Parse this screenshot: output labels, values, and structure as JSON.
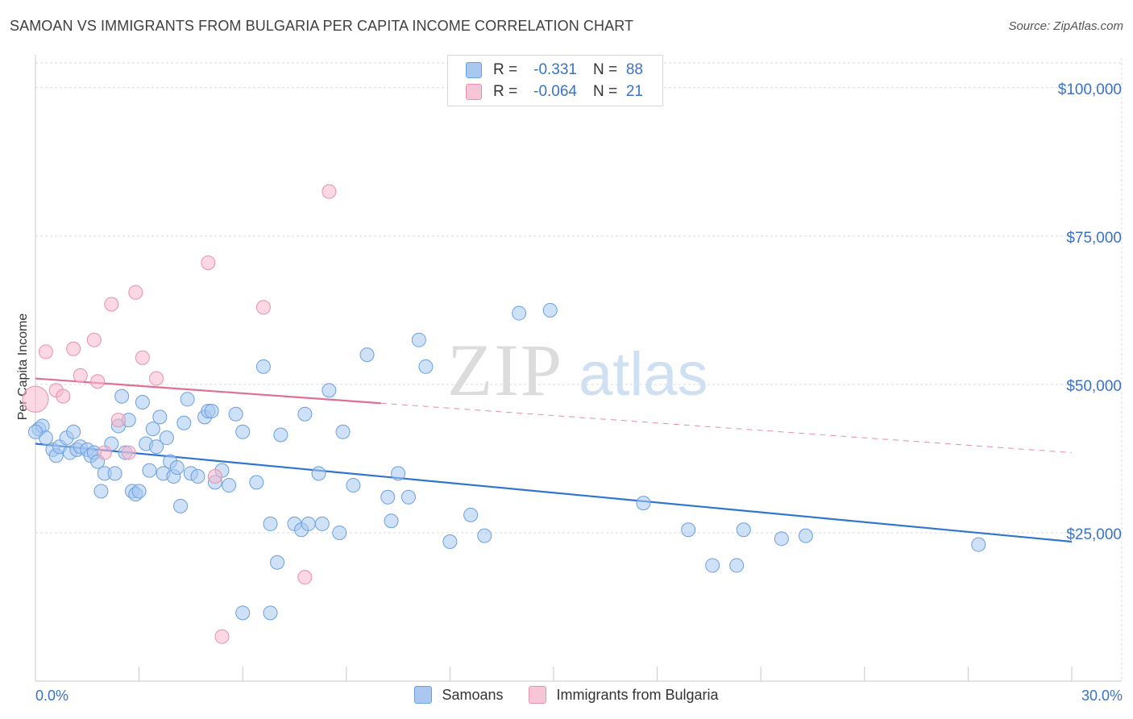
{
  "title": "SAMOAN VS IMMIGRANTS FROM BULGARIA PER CAPITA INCOME CORRELATION CHART",
  "source": "Source: ZipAtlas.com",
  "watermark": {
    "zip": "ZIP",
    "atlas": "atlas"
  },
  "legend_top": [
    {
      "r_label": "R =",
      "r_value": "-0.331",
      "n_label": "N =",
      "n_value": "88"
    },
    {
      "r_label": "R =",
      "r_value": "-0.064",
      "n_label": "N =",
      "n_value": "21"
    }
  ],
  "legend_bottom": [
    {
      "label": "Samoans"
    },
    {
      "label": "Immigrants from Bulgaria"
    }
  ],
  "colors": {
    "samoan_fill": "#a8c8f0",
    "samoan_stroke": "#6a9fe0",
    "samoan_line": "#2f74d0",
    "bulgaria_fill": "#f7b8cc",
    "bulgaria_stroke": "#e890ad",
    "bulgaria_line": "#e06f96",
    "tick_label": "#3a73c6"
  },
  "chart_data": {
    "type": "scatter",
    "title": "SAMOAN VS IMMIGRANTS FROM BULGARIA PER CAPITA INCOME CORRELATION CHART",
    "xlabel": "",
    "ylabel": "Per Capita Income",
    "xlim": [
      0,
      30
    ],
    "ylim": [
      0,
      105000
    ],
    "x_tick_labels": [
      "0.0%",
      "30.0%"
    ],
    "y_ticks": [
      {
        "value": 25000,
        "label": "$25,000"
      },
      {
        "value": 50000,
        "label": "$50,000"
      },
      {
        "value": 75000,
        "label": "$75,000"
      },
      {
        "value": 100000,
        "label": "$100,000"
      }
    ],
    "series": [
      {
        "name": "Samoans",
        "points": [
          [
            0.1,
            42500
          ],
          [
            0.2,
            43000
          ],
          [
            0.3,
            41000
          ],
          [
            0.5,
            39000
          ],
          [
            0.6,
            38000
          ],
          [
            0.7,
            39500
          ],
          [
            0.9,
            41000
          ],
          [
            1.0,
            38500
          ],
          [
            1.1,
            42000
          ],
          [
            1.2,
            39000
          ],
          [
            1.3,
            39500
          ],
          [
            1.5,
            39000
          ],
          [
            1.6,
            38000
          ],
          [
            1.7,
            38500
          ],
          [
            1.8,
            37000
          ],
          [
            1.9,
            32000
          ],
          [
            2.0,
            35000
          ],
          [
            2.2,
            40000
          ],
          [
            2.3,
            35000
          ],
          [
            2.4,
            43000
          ],
          [
            2.5,
            48000
          ],
          [
            2.6,
            38500
          ],
          [
            2.7,
            44000
          ],
          [
            2.8,
            32000
          ],
          [
            2.9,
            31500
          ],
          [
            3.0,
            32000
          ],
          [
            3.1,
            47000
          ],
          [
            3.2,
            40000
          ],
          [
            3.3,
            35500
          ],
          [
            3.4,
            42500
          ],
          [
            3.5,
            39500
          ],
          [
            3.6,
            44500
          ],
          [
            3.7,
            35000
          ],
          [
            3.8,
            41000
          ],
          [
            3.9,
            37000
          ],
          [
            4.0,
            34500
          ],
          [
            4.1,
            36000
          ],
          [
            4.2,
            29500
          ],
          [
            4.3,
            43500
          ],
          [
            4.4,
            47500
          ],
          [
            4.5,
            35000
          ],
          [
            4.7,
            34500
          ],
          [
            4.9,
            44500
          ],
          [
            5.0,
            45500
          ],
          [
            5.1,
            45500
          ],
          [
            5.2,
            33500
          ],
          [
            5.4,
            35500
          ],
          [
            5.6,
            33000
          ],
          [
            5.8,
            45000
          ],
          [
            6.0,
            42000
          ],
          [
            6.4,
            33500
          ],
          [
            6.6,
            53000
          ],
          [
            6.8,
            26500
          ],
          [
            7.0,
            20000
          ],
          [
            7.1,
            41500
          ],
          [
            7.5,
            26500
          ],
          [
            7.7,
            25500
          ],
          [
            7.8,
            45000
          ],
          [
            7.9,
            26500
          ],
          [
            8.2,
            35000
          ],
          [
            8.3,
            26500
          ],
          [
            8.5,
            49000
          ],
          [
            8.8,
            25000
          ],
          [
            8.9,
            42000
          ],
          [
            9.2,
            33000
          ],
          [
            9.6,
            55000
          ],
          [
            10.2,
            31000
          ],
          [
            10.3,
            27000
          ],
          [
            10.5,
            35000
          ],
          [
            10.8,
            31000
          ],
          [
            11.1,
            57500
          ],
          [
            11.3,
            53000
          ],
          [
            12.0,
            23500
          ],
          [
            12.6,
            28000
          ],
          [
            13.0,
            24500
          ],
          [
            14.0,
            62000
          ],
          [
            14.9,
            62500
          ],
          [
            17.6,
            30000
          ],
          [
            18.9,
            25500
          ],
          [
            19.6,
            19500
          ],
          [
            20.3,
            19500
          ],
          [
            20.5,
            25500
          ],
          [
            21.6,
            24000
          ],
          [
            22.3,
            24500
          ],
          [
            27.3,
            23000
          ],
          [
            6.0,
            11500
          ],
          [
            6.8,
            11500
          ],
          [
            0.0,
            42000
          ]
        ],
        "trendline": {
          "x": [
            0,
            30
          ],
          "y": [
            40000,
            23500
          ],
          "dashed_after": null
        }
      },
      {
        "name": "Immigrants from Bulgaria",
        "points": [
          [
            0.0,
            47500
          ],
          [
            0.3,
            55500
          ],
          [
            0.6,
            49000
          ],
          [
            0.8,
            48000
          ],
          [
            1.1,
            56000
          ],
          [
            1.3,
            51500
          ],
          [
            1.7,
            57500
          ],
          [
            1.8,
            50500
          ],
          [
            2.0,
            38500
          ],
          [
            2.2,
            63500
          ],
          [
            2.4,
            44000
          ],
          [
            2.7,
            38500
          ],
          [
            2.9,
            65500
          ],
          [
            3.1,
            54500
          ],
          [
            3.5,
            51000
          ],
          [
            5.0,
            70500
          ],
          [
            5.2,
            34500
          ],
          [
            5.4,
            7500
          ],
          [
            6.6,
            63000
          ],
          [
            7.8,
            17500
          ],
          [
            8.5,
            82500
          ]
        ],
        "trendline": {
          "x": [
            0,
            30
          ],
          "y": [
            51000,
            38500
          ],
          "solid_until_x": 10.0
        }
      }
    ]
  }
}
